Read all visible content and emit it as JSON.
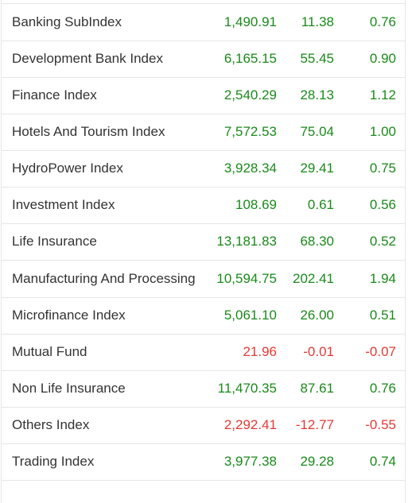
{
  "rows": [
    {
      "name": "Banking SubIndex",
      "value": "1,490.91",
      "change": "11.38",
      "percent": "0.76",
      "trend": "up"
    },
    {
      "name": "Development Bank Index",
      "value": "6,165.15",
      "change": "55.45",
      "percent": "0.90",
      "trend": "up"
    },
    {
      "name": "Finance Index",
      "value": "2,540.29",
      "change": "28.13",
      "percent": "1.12",
      "trend": "up"
    },
    {
      "name": "Hotels And Tourism Index",
      "value": "7,572.53",
      "change": "75.04",
      "percent": "1.00",
      "trend": "up"
    },
    {
      "name": "HydroPower Index",
      "value": "3,928.34",
      "change": "29.41",
      "percent": "0.75",
      "trend": "up"
    },
    {
      "name": "Investment Index",
      "value": "108.69",
      "change": "0.61",
      "percent": "0.56",
      "trend": "up"
    },
    {
      "name": "Life Insurance",
      "value": "13,181.83",
      "change": "68.30",
      "percent": "0.52",
      "trend": "up"
    },
    {
      "name": "Manufacturing And Processing",
      "value": "10,594.75",
      "change": "202.41",
      "percent": "1.94",
      "trend": "up"
    },
    {
      "name": "Microfinance Index",
      "value": "5,061.10",
      "change": "26.00",
      "percent": "0.51",
      "trend": "up"
    },
    {
      "name": "Mutual Fund",
      "value": "21.96",
      "change": "-0.01",
      "percent": "-0.07",
      "trend": "down"
    },
    {
      "name": "Non Life Insurance",
      "value": "11,470.35",
      "change": "87.61",
      "percent": "0.76",
      "trend": "up"
    },
    {
      "name": "Others Index",
      "value": "2,292.41",
      "change": "-12.77",
      "percent": "-0.55",
      "trend": "down"
    },
    {
      "name": "Trading Index",
      "value": "3,977.38",
      "change": "29.28",
      "percent": "0.74",
      "trend": "up"
    }
  ],
  "colors": {
    "up": "#1a8a1a",
    "down": "#e53935",
    "text": "#333333",
    "border": "#e6e6e6"
  }
}
